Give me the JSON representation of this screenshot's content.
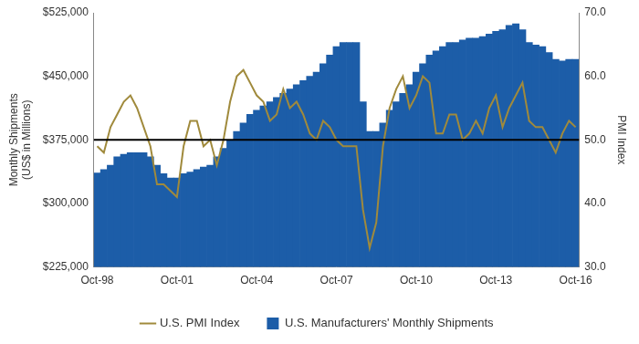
{
  "chart_data": {
    "type": "bar",
    "y_label": [
      "Monthly Shipments",
      "(US$ in Millions)"
    ],
    "y2_label": "PMI Index",
    "categories": [
      "Oct-98",
      null,
      null,
      null,
      null,
      null,
      null,
      null,
      null,
      null,
      null,
      null,
      "Oct-01",
      null,
      null,
      null,
      null,
      null,
      null,
      null,
      null,
      null,
      null,
      null,
      "Oct-04",
      null,
      null,
      null,
      null,
      null,
      null,
      null,
      null,
      null,
      null,
      null,
      "Oct-07",
      null,
      null,
      null,
      null,
      null,
      null,
      null,
      null,
      null,
      null,
      null,
      "Oct-10",
      null,
      null,
      null,
      null,
      null,
      null,
      null,
      null,
      null,
      null,
      null,
      "Oct-13",
      null,
      null,
      null,
      null,
      null,
      null,
      null,
      null,
      null,
      null,
      null,
      "Oct-16"
    ],
    "series": [
      {
        "name": "U.S. Manufacturers' Monthly Shipments",
        "type": "bar",
        "color": "#1c5da8",
        "values": [
          336000,
          340000,
          345000,
          355000,
          358000,
          360000,
          360000,
          360000,
          355000,
          345000,
          335000,
          330000,
          330000,
          335000,
          337000,
          340000,
          343000,
          345000,
          355000,
          365000,
          375000,
          385000,
          395000,
          405000,
          410000,
          415000,
          420000,
          425000,
          430000,
          435000,
          440000,
          445000,
          450000,
          455000,
          465000,
          475000,
          485000,
          490000,
          490000,
          490000,
          420000,
          385000,
          385000,
          395000,
          410000,
          420000,
          430000,
          440000,
          455000,
          465000,
          475000,
          480000,
          485000,
          490000,
          490000,
          493000,
          495000,
          495000,
          497000,
          500000,
          503000,
          505000,
          510000,
          512000,
          505000,
          490000,
          487000,
          485000,
          478000,
          470000,
          468000,
          470000,
          470000
        ]
      },
      {
        "name": "U.S. PMI Index",
        "type": "line",
        "axis": "y2",
        "color": "#a08a3c",
        "values": [
          49,
          48,
          52,
          54,
          56,
          57,
          55,
          52,
          49,
          43,
          43,
          42,
          41,
          49,
          53,
          53,
          49,
          50,
          46,
          50,
          56,
          60,
          61,
          59,
          57,
          56,
          53,
          54,
          58,
          55,
          56,
          54,
          51,
          50,
          53,
          52,
          50,
          49,
          49,
          49,
          39,
          33,
          37,
          49,
          55,
          58,
          60,
          55,
          57,
          60,
          59,
          51,
          51,
          54,
          54,
          50,
          51,
          53,
          51,
          55,
          57,
          52,
          55,
          57,
          59,
          53,
          52,
          52,
          50,
          48,
          51,
          53,
          52
        ]
      }
    ],
    "ylim": [
      225000,
      525000
    ],
    "yticks": [
      {
        "value": 225000,
        "label": "$225,000"
      },
      {
        "value": 300000,
        "label": "$300,000"
      },
      {
        "value": 375000,
        "label": "$375,000"
      },
      {
        "value": 450000,
        "label": "$450,000"
      },
      {
        "value": 525000,
        "label": "$525,000"
      }
    ],
    "y2lim": [
      30,
      70
    ],
    "y2ticks": [
      {
        "value": 30,
        "label": "30.0"
      },
      {
        "value": 40,
        "label": "40.0"
      },
      {
        "value": 50,
        "label": "50.0"
      },
      {
        "value": 60,
        "label": "60.0"
      },
      {
        "value": 70,
        "label": "70.0"
      }
    ],
    "reference_line": {
      "value": 50,
      "axis": "y2",
      "color": "#000000"
    },
    "grid": false,
    "legend": "bottom"
  }
}
